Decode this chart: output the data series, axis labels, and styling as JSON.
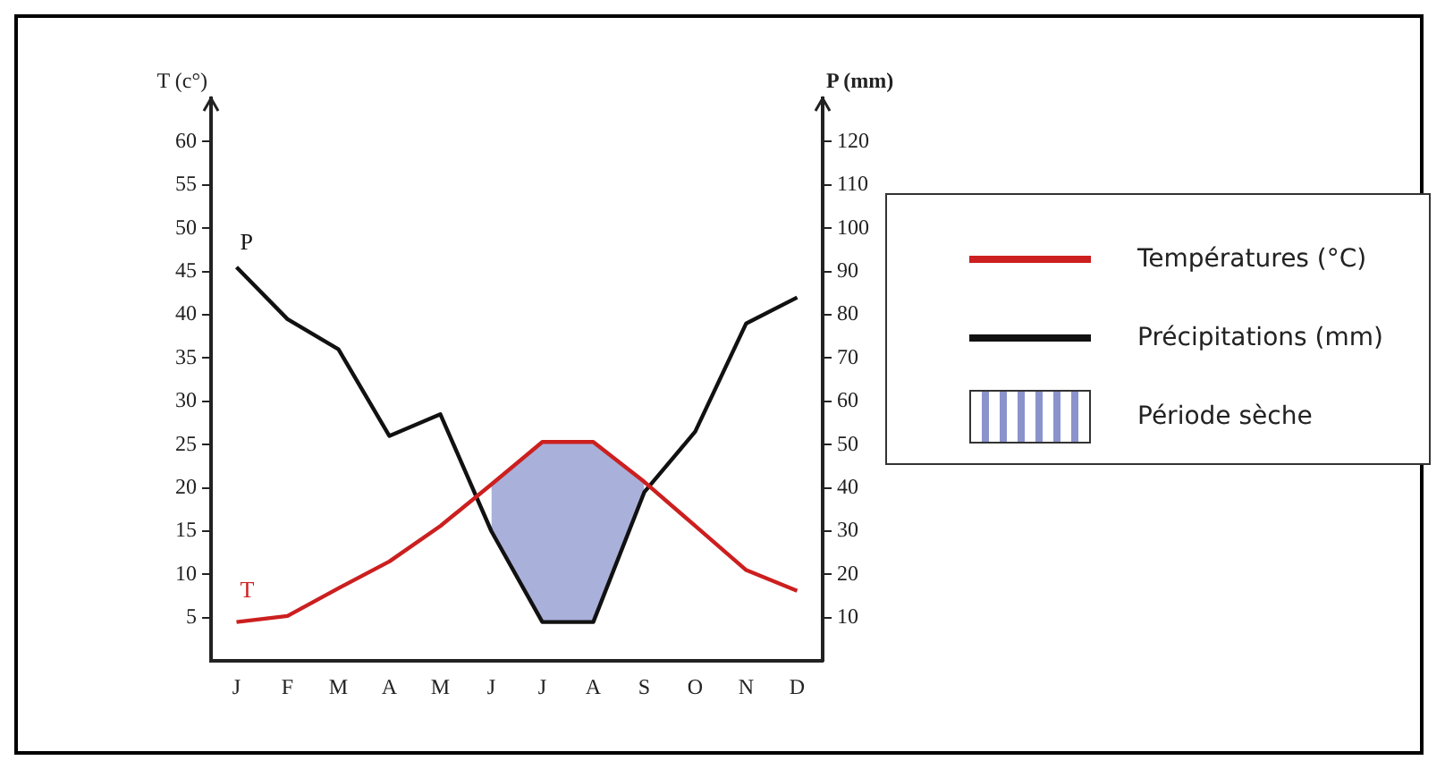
{
  "chart_data": {
    "type": "line",
    "xlabel": null,
    "ylabel": "T (c°)",
    "y2label": "P (mm)",
    "categories": [
      "J",
      "F",
      "M",
      "A",
      "M",
      "J",
      "J",
      "A",
      "S",
      "O",
      "N",
      "D"
    ],
    "series": [
      {
        "name": "Températures (°C)",
        "color": "#cc1f1f",
        "axis": "y",
        "values": [
          4.5,
          5.2,
          8.4,
          11.5,
          15.6,
          20.4,
          25.3,
          25.3,
          20.7,
          15.6,
          10.5,
          8.1
        ]
      },
      {
        "name": "Précipitations (mm)",
        "color": "#111111",
        "axis": "y2",
        "values": [
          91,
          79,
          72,
          52,
          57,
          30,
          9,
          9,
          39,
          53,
          78,
          84
        ]
      },
      {
        "name": "Période sèche",
        "type": "area",
        "color": "#8a93cc",
        "axis": "y2",
        "values": [
          null,
          null,
          null,
          null,
          null,
          41,
          51,
          51,
          41,
          null,
          null,
          null
        ]
      }
    ],
    "ylim": [
      0,
      65
    ],
    "yticks": [
      5,
      10,
      15,
      20,
      25,
      30,
      35,
      40,
      45,
      50,
      55,
      60
    ],
    "y2lim": [
      0,
      130
    ],
    "y2ticks": [
      10,
      20,
      30,
      40,
      50,
      60,
      70,
      80,
      90,
      100,
      110,
      120
    ],
    "annotations": [
      "P",
      "T"
    ],
    "grid": false,
    "legend": "right",
    "marker": "none",
    "line_style": "solid"
  }
}
